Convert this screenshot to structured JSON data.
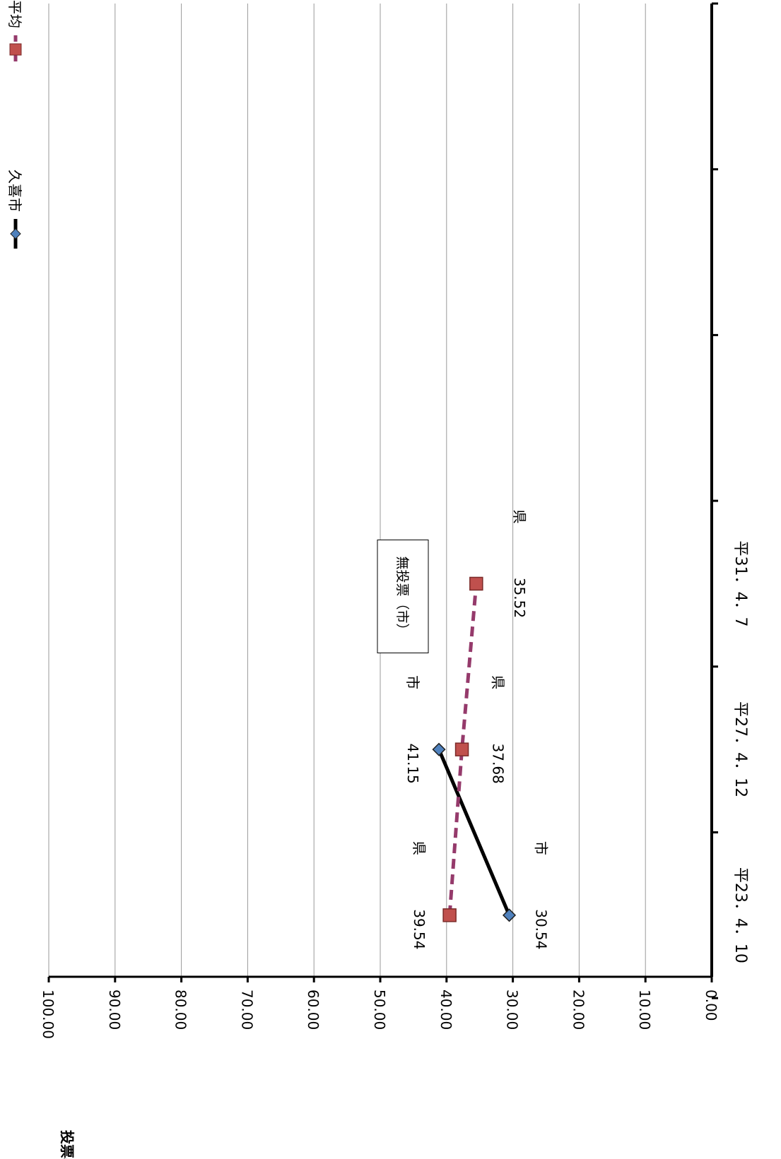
{
  "chart_data": {
    "type": "line",
    "ylabel": "投票率（%）",
    "ylim": [
      0,
      100
    ],
    "y_ticks": [
      "0.00",
      "10.00",
      "20.00",
      "30.00",
      "40.00",
      "50.00",
      "60.00",
      "70.00",
      "80.00",
      "90.00",
      "100.00"
    ],
    "grid": true,
    "legend_position": "top-right",
    "categories": [
      "平23．4．10",
      "平27．4．12",
      "平31．4．7",
      "",
      "",
      ""
    ],
    "series": [
      {
        "name": "久喜市",
        "color": "#000000",
        "marker": "diamond",
        "marker_color": "#4F81BD",
        "dash": "solid",
        "values": [
          30.54,
          41.15,
          null,
          null,
          null,
          null
        ],
        "point_tag": "市"
      },
      {
        "name": "県平均",
        "color": "#953A6B",
        "marker": "square",
        "marker_color": "#C0504D",
        "dash": "dashed",
        "values": [
          39.54,
          37.68,
          35.52,
          null,
          null,
          null
        ],
        "point_tag": "県"
      }
    ],
    "annotations": [
      {
        "text": "無投票（市）",
        "category_index": 2
      }
    ]
  }
}
